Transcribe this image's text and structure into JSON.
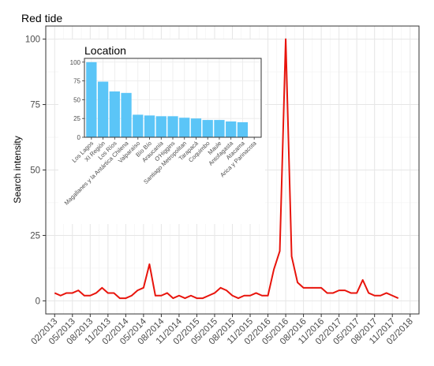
{
  "chart_data": [
    {
      "type": "line",
      "title": "Red tide",
      "xlabel": "",
      "ylabel": "Search intensity",
      "ylim": [
        0,
        100
      ],
      "y_ticks": [
        0,
        25,
        50,
        75,
        100
      ],
      "x_tick_labels": [
        "02/2013",
        "05/2013",
        "08/2013",
        "11/2013",
        "02/2014",
        "05/2014",
        "08/2014",
        "11/2014",
        "02/2015",
        "05/2015",
        "08/2015",
        "11/2015",
        "02/2016",
        "05/2016",
        "08/2016",
        "11/2016",
        "02/2017",
        "05/2017",
        "08/2017",
        "11/2017",
        "02/2018"
      ],
      "grid": true,
      "series_color": "#e8140c",
      "series": [
        {
          "name": "",
          "x": [
            "2013-02",
            "2013-03",
            "2013-04",
            "2013-05",
            "2013-06",
            "2013-07",
            "2013-08",
            "2013-09",
            "2013-10",
            "2013-11",
            "2013-12",
            "2014-01",
            "2014-02",
            "2014-03",
            "2014-04",
            "2014-05",
            "2014-06",
            "2014-07",
            "2014-08",
            "2014-09",
            "2014-10",
            "2014-11",
            "2014-12",
            "2015-01",
            "2015-02",
            "2015-03",
            "2015-04",
            "2015-05",
            "2015-06",
            "2015-07",
            "2015-08",
            "2015-09",
            "2015-10",
            "2015-11",
            "2015-12",
            "2016-01",
            "2016-02",
            "2016-03",
            "2016-04",
            "2016-05",
            "2016-06",
            "2016-07",
            "2016-08",
            "2016-09",
            "2016-10",
            "2016-11",
            "2016-12",
            "2017-01",
            "2017-02",
            "2017-03",
            "2017-04",
            "2017-05",
            "2017-06",
            "2017-07",
            "2017-08",
            "2017-09",
            "2017-10",
            "2017-11",
            "2017-12"
          ],
          "values": [
            3,
            2,
            3,
            3,
            4,
            2,
            2,
            3,
            5,
            3,
            3,
            1,
            1,
            2,
            4,
            5,
            14,
            2,
            2,
            3,
            1,
            2,
            1,
            2,
            1,
            1,
            2,
            3,
            5,
            4,
            2,
            1,
            2,
            2,
            3,
            2,
            2,
            12,
            19,
            100,
            17,
            7,
            5,
            5,
            5,
            5,
            3,
            3,
            4,
            4,
            3,
            3,
            8,
            3,
            2,
            2,
            3,
            2,
            1
          ]
        }
      ]
    },
    {
      "type": "bar",
      "title": "Location",
      "xlabel": "",
      "ylabel": "",
      "ylim": [
        0,
        105
      ],
      "y_ticks": [
        0,
        25,
        50,
        75,
        100
      ],
      "bar_color": "#5bc5f7",
      "categories": [
        "Los Lagos",
        "XI Región",
        "Los Ríos",
        "Magallanes y la Antártica Chilena",
        "Valparaíso",
        "Bío Bío",
        "Araucanía",
        "O'Higgins",
        "Santiago Metropolitan",
        "Tarapacá",
        "Coquimbo",
        "Maule",
        "Antofagasta",
        "Atacama",
        "Arica y Parinacota"
      ],
      "values": [
        100,
        74,
        61,
        59,
        30,
        29,
        28,
        28,
        26,
        25,
        23,
        23,
        21,
        20,
        0
      ]
    }
  ]
}
